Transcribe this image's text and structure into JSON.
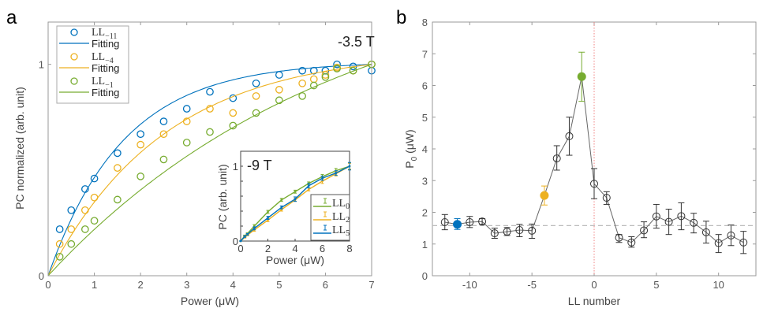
{
  "chart_data": [
    {
      "id": "a",
      "type": "scatter",
      "panel_label": "a",
      "annotation": "-3.5 T",
      "xlabel": "Power (μW)",
      "ylabel": "PC normalized (arb. unit)",
      "xlim": [
        0,
        7
      ],
      "ylim": [
        0,
        1.2
      ],
      "xticks": [
        0,
        1,
        2,
        3,
        4,
        5,
        6,
        7
      ],
      "yticks": [
        0,
        1
      ],
      "grid": false,
      "legend_position": "top-left",
      "x": [
        0.25,
        0.5,
        0.8,
        1,
        1.5,
        2,
        2.5,
        3,
        3.5,
        4,
        4.5,
        5,
        5.5,
        5.75,
        6,
        6.25,
        6.6,
        7
      ],
      "series": [
        {
          "name": "LL_{-11}",
          "legend_main": "LL",
          "legend_sub": "−11",
          "fit_label": "Fitting",
          "color": "#0072BD",
          "fit_P0": 1.63,
          "values": [
            0.22,
            0.31,
            0.41,
            0.46,
            0.58,
            0.67,
            0.73,
            0.79,
            0.87,
            0.84,
            0.91,
            0.95,
            0.97,
            0.97,
            0.97,
            1.0,
            0.99,
            0.97
          ]
        },
        {
          "name": "LL_{-4}",
          "legend_main": "LL",
          "legend_sub": "−4",
          "fit_label": "Fitting",
          "color": "#EDB120",
          "fit_P0": 2.53,
          "values": [
            0.15,
            0.22,
            0.31,
            0.37,
            0.51,
            0.62,
            0.67,
            0.73,
            0.79,
            0.77,
            0.85,
            0.88,
            0.91,
            0.93,
            0.95,
            0.985,
            0.97,
            1.0
          ]
        },
        {
          "name": "LL_{-1}",
          "legend_main": "LL",
          "legend_sub": "−1",
          "fit_label": "Fitting",
          "color": "#77AC30",
          "fit_P0": 6.28,
          "values": [
            0.09,
            0.15,
            0.22,
            0.26,
            0.36,
            0.47,
            0.55,
            0.63,
            0.68,
            0.71,
            0.77,
            0.83,
            0.85,
            0.9,
            0.94,
            0.98,
            0.97,
            1.0
          ]
        }
      ],
      "inset": {
        "type": "line",
        "annotation": "-9 T",
        "xlabel": "Power (μW)",
        "ylabel": "PC (arb. unit)",
        "xlim": [
          0,
          8
        ],
        "ylim": [
          0,
          1.2
        ],
        "xticks": [
          0,
          2,
          4,
          6,
          8
        ],
        "yticks": [
          0,
          1
        ],
        "legend_position": "bottom-right",
        "x": [
          0,
          0.3,
          0.5,
          1,
          2,
          3,
          4,
          5,
          6,
          7,
          8
        ],
        "series": [
          {
            "name": "LL_0",
            "legend_main": "LL",
            "legend_sub": "0",
            "color": "#77AC30",
            "values": [
              0,
              0.07,
              0.1,
              0.2,
              0.39,
              0.55,
              0.66,
              0.77,
              0.86,
              0.94,
              1.0
            ],
            "errors": [
              0,
              0.01,
              0.01,
              0.02,
              0.02,
              0.02,
              0.02,
              0.02,
              0.03,
              0.03,
              0.04
            ]
          },
          {
            "name": "LL_2",
            "legend_main": "LL",
            "legend_sub": "2",
            "color": "#EDB120",
            "values": [
              0,
              0.05,
              0.08,
              0.15,
              0.28,
              0.42,
              0.55,
              0.69,
              0.8,
              0.9,
              1.0
            ],
            "errors": [
              0,
              0.01,
              0.01,
              0.02,
              0.02,
              0.02,
              0.02,
              0.02,
              0.03,
              0.03,
              0.04
            ]
          },
          {
            "name": "LL_5",
            "legend_main": "LL",
            "legend_sub": "5",
            "color": "#0072BD",
            "values": [
              0,
              0.06,
              0.09,
              0.17,
              0.31,
              0.45,
              0.56,
              0.74,
              0.84,
              0.91,
              1.0
            ],
            "errors": [
              0,
              0.01,
              0.01,
              0.02,
              0.02,
              0.02,
              0.03,
              0.03,
              0.03,
              0.03,
              0.05
            ]
          }
        ]
      }
    },
    {
      "id": "b",
      "type": "scatter",
      "panel_label": "b",
      "xlabel": "LL number",
      "ylabel_main": "P",
      "ylabel_sub": "0",
      "ylabel_unit": " (μW)",
      "xlim": [
        -13,
        13
      ],
      "ylim": [
        0,
        8
      ],
      "xticks": [
        -10,
        -5,
        0,
        5,
        10
      ],
      "yticks": [
        0,
        1,
        2,
        3,
        4,
        5,
        6,
        7,
        8
      ],
      "grid": false,
      "reference_hline": 1.58,
      "reference_vline": 0,
      "x": [
        -12,
        -11,
        -10,
        -9,
        -8,
        -7,
        -6,
        -5,
        -4,
        -3,
        -2,
        -1,
        0,
        1,
        2,
        3,
        4,
        5,
        6,
        7,
        8,
        9,
        10,
        11,
        12
      ],
      "values": [
        1.69,
        1.62,
        1.69,
        1.71,
        1.34,
        1.39,
        1.44,
        1.42,
        2.53,
        3.7,
        4.4,
        6.28,
        2.9,
        2.46,
        1.2,
        1.05,
        1.43,
        1.87,
        1.7,
        1.88,
        1.67,
        1.37,
        1.03,
        1.27,
        1.05
      ],
      "err_upper": [
        1.93,
        1.8,
        1.87,
        1.8,
        1.5,
        1.52,
        1.62,
        1.63,
        2.83,
        4.1,
        5.0,
        7.05,
        3.38,
        2.65,
        1.3,
        1.23,
        1.7,
        2.25,
        2.1,
        2.3,
        1.97,
        1.72,
        1.3,
        1.6,
        1.4
      ],
      "err_lower": [
        1.45,
        1.46,
        1.52,
        1.62,
        1.18,
        1.27,
        1.23,
        1.18,
        2.23,
        3.33,
        3.8,
        5.5,
        2.43,
        2.25,
        1.05,
        0.9,
        1.2,
        1.5,
        1.3,
        1.45,
        1.35,
        1.03,
        0.73,
        0.95,
        0.7
      ],
      "highlight": {
        "-11": "#0072BD",
        "-4": "#EDB120",
        "-1": "#77AC30"
      },
      "default_color": "#333333",
      "line_color": "#666666",
      "hline_color": "#bbbbbb",
      "vline_color": "#f08080"
    }
  ]
}
